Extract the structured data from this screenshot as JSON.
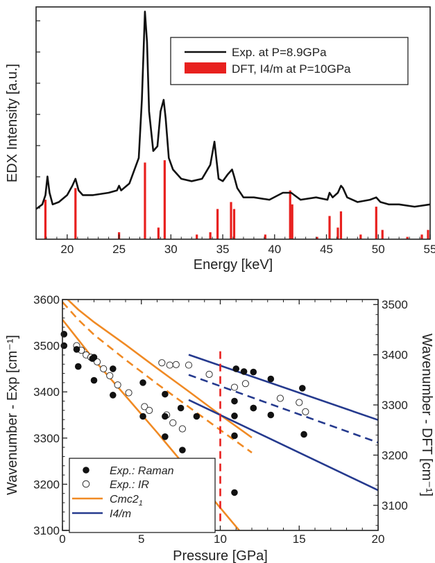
{
  "chart_data": [
    {
      "type": "line",
      "xlabel": "Energy [keV]",
      "ylabel": "EDX Intensity [a.u.]",
      "xlim": [
        17,
        55
      ],
      "ylim": [
        0,
        1
      ],
      "xticks": [
        "20",
        "25",
        "30",
        "35",
        "40",
        "45",
        "50",
        "55"
      ],
      "legend": {
        "placement": "top-right"
      },
      "series": [
        {
          "name": "Exp. at P=8.9GPa",
          "kind": "line",
          "color": "#111111",
          "x": [
            17.0,
            17.6,
            17.9,
            18.1,
            18.3,
            18.6,
            19.2,
            20.0,
            20.5,
            20.8,
            21.1,
            21.5,
            22.5,
            24.0,
            24.8,
            25.0,
            25.2,
            26.0,
            26.9,
            27.2,
            27.5,
            27.7,
            27.9,
            28.3,
            28.7,
            29.0,
            29.3,
            29.5,
            29.8,
            30.2,
            31.0,
            32.0,
            33.0,
            33.8,
            34.2,
            34.4,
            34.6,
            35.0,
            35.5,
            35.9,
            36.1,
            36.4,
            37.0,
            38.0,
            39.5,
            40.8,
            41.4,
            41.6,
            41.9,
            42.5,
            44.0,
            45.1,
            45.3,
            45.6,
            46.1,
            46.4,
            46.6,
            47.0,
            48.0,
            49.2,
            49.8,
            50.2,
            51.0,
            52.0,
            53.5,
            55.0
          ],
          "y": [
            0.13,
            0.15,
            0.19,
            0.27,
            0.2,
            0.15,
            0.16,
            0.19,
            0.23,
            0.26,
            0.21,
            0.19,
            0.19,
            0.2,
            0.21,
            0.23,
            0.21,
            0.24,
            0.35,
            0.6,
            0.98,
            0.85,
            0.55,
            0.38,
            0.4,
            0.55,
            0.6,
            0.52,
            0.35,
            0.3,
            0.26,
            0.25,
            0.26,
            0.32,
            0.42,
            0.34,
            0.26,
            0.25,
            0.28,
            0.3,
            0.27,
            0.22,
            0.18,
            0.18,
            0.17,
            0.2,
            0.2,
            0.2,
            0.19,
            0.17,
            0.18,
            0.17,
            0.2,
            0.18,
            0.2,
            0.23,
            0.22,
            0.18,
            0.16,
            0.17,
            0.18,
            0.16,
            0.15,
            0.15,
            0.14,
            0.15
          ]
        },
        {
          "name": "DFT, I4/m at P=10GPa",
          "kind": "bar",
          "color": "#e8201e",
          "x": [
            17.9,
            20.8,
            25.0,
            27.5,
            28.8,
            29.4,
            32.5,
            33.8,
            34.5,
            35.8,
            36.1,
            39.1,
            41.5,
            41.7,
            44.1,
            45.3,
            46.1,
            46.4,
            48.3,
            49.8,
            50.4,
            52.8,
            54.2,
            54.8
          ],
          "values": [
            0.17,
            0.22,
            0.03,
            0.33,
            0.05,
            0.34,
            0.02,
            0.03,
            0.13,
            0.16,
            0.13,
            0.02,
            0.21,
            0.15,
            0.01,
            0.1,
            0.05,
            0.12,
            0.02,
            0.14,
            0.04,
            0.01,
            0.02,
            0.04
          ]
        }
      ]
    },
    {
      "type": "scatter",
      "xlabel": "Pressure [GPa]",
      "ylabel": "Wavenumber - Exp [cm⁻¹]",
      "ylabel2": "Wavenumber - DFT [cm⁻¹]",
      "xlim": [
        0,
        20
      ],
      "ylim": [
        3100,
        3600
      ],
      "ylim2": [
        3050,
        3510
      ],
      "xticks": [
        "0",
        "5",
        "10",
        "15",
        "20"
      ],
      "yticks": [
        "3100",
        "3200",
        "3300",
        "3400",
        "3500",
        "3600"
      ],
      "yticks2": [
        "3100",
        "3200",
        "3300",
        "3400",
        "3500"
      ],
      "legend": {
        "placement": "bottom-left"
      },
      "legend_labels": {
        "raman": "Exp.: Raman",
        "ir": "Exp.: IR",
        "cmc": "Cmc2",
        "cmc_sub": "1",
        "i4m": "I4/m"
      },
      "colors": {
        "orange": "#f08a24",
        "blue": "#253a8e",
        "red_dashed": "#e8201e"
      },
      "raman": {
        "x": [
          0.1,
          0.1,
          0.9,
          1.0,
          1.9,
          2.0,
          2.0,
          3.2,
          3.2,
          5.1,
          5.1,
          6.5,
          6.5,
          6.5,
          7.5,
          7.6,
          8.5,
          10.9,
          10.9,
          10.9,
          10.9,
          11.0,
          11.5,
          12.1,
          12.1,
          12.1,
          13.2,
          13.2,
          15.2,
          15.3
        ],
        "y": [
          3525,
          3500,
          3492,
          3455,
          3472,
          3475,
          3425,
          3450,
          3393,
          3420,
          3347,
          3395,
          3303,
          3347,
          3365,
          3274,
          3347,
          3305,
          3182,
          3380,
          3348,
          3450,
          3444,
          3443,
          3365,
          3365,
          3428,
          3350,
          3408,
          3308
        ]
      },
      "ir": {
        "x": [
          0.9,
          1.2,
          1.5,
          1.8,
          2.2,
          2.6,
          3.0,
          3.5,
          4.2,
          5.2,
          5.5,
          6.3,
          6.6,
          6.8,
          7.0,
          7.2,
          7.6,
          8.0,
          9.3,
          10.9,
          11.6,
          13.8,
          15.0,
          15.4
        ],
        "y": [
          3500,
          3490,
          3480,
          3475,
          3465,
          3450,
          3435,
          3415,
          3398,
          3368,
          3360,
          3463,
          3350,
          3458,
          3333,
          3459,
          3320,
          3458,
          3438,
          3410,
          3418,
          3386,
          3377,
          3357
        ]
      },
      "cmc_lines": [
        {
          "style": "solid",
          "x": [
            0,
            1,
            2,
            4,
            6,
            8,
            10,
            12
          ],
          "y2": [
            3520,
            3490,
            3465,
            3420,
            3373,
            3327,
            3280,
            3235
          ]
        },
        {
          "style": "dashed",
          "x": [
            0,
            1,
            2,
            4,
            6,
            8,
            10,
            12
          ],
          "y2": [
            3505,
            3470,
            3440,
            3390,
            3342,
            3296,
            3250,
            3205
          ]
        },
        {
          "style": "solid",
          "x": [
            0,
            1,
            2,
            4,
            6,
            8,
            10,
            12
          ],
          "y2": [
            3470,
            3430,
            3390,
            3318,
            3245,
            3170,
            3095,
            3020
          ]
        }
      ],
      "i4m_lines": [
        {
          "style": "solid",
          "x": [
            8,
            20
          ],
          "y2": [
            3400,
            3270
          ]
        },
        {
          "style": "dashed",
          "x": [
            8,
            20
          ],
          "y2": [
            3360,
            3225
          ]
        },
        {
          "style": "solid",
          "x": [
            8,
            20
          ],
          "y2": [
            3310,
            3130
          ]
        }
      ],
      "vline": {
        "x": 10,
        "y": [
          3120,
          3490
        ],
        "style": "dashed"
      }
    }
  ]
}
